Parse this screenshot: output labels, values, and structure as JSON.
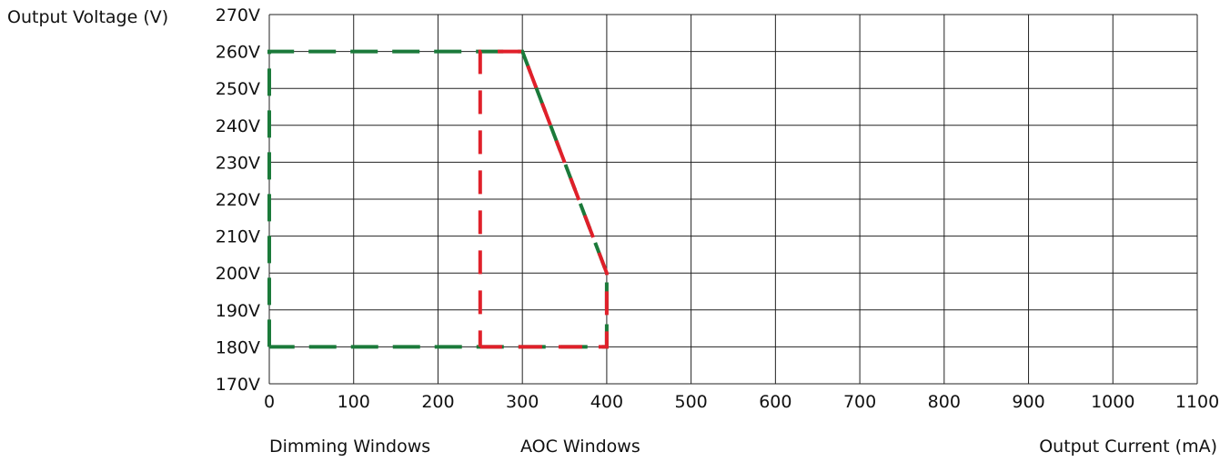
{
  "chart_data": {
    "type": "line",
    "ylabel": "Output Voltage (V)",
    "xlabel": "Output Current (mA)",
    "x_ticks": [
      "0",
      "100",
      "200",
      "300",
      "400",
      "500",
      "600",
      "700",
      "800",
      "900",
      "1000",
      "1100"
    ],
    "y_ticks": [
      "270V",
      "260V",
      "250V",
      "240V",
      "230V",
      "220V",
      "210V",
      "200V",
      "190V",
      "180V",
      "170V"
    ],
    "xlim": [
      0,
      1100
    ],
    "ylim": [
      170,
      270
    ],
    "grid": true,
    "series": [
      {
        "name": "Dimming Windows",
        "color": "#1b7a3a",
        "line_style": "dashed",
        "points": [
          [
            0,
            180
          ],
          [
            0,
            260
          ],
          [
            300,
            260
          ],
          [
            400,
            200
          ],
          [
            400,
            180
          ],
          [
            0,
            180
          ]
        ]
      },
      {
        "name": "AOC Windows",
        "color": "#e0202a",
        "line_style": "dashed",
        "points": [
          [
            250,
            180
          ],
          [
            250,
            260
          ],
          [
            300,
            260
          ],
          [
            400,
            200
          ],
          [
            400,
            180
          ],
          [
            250,
            180
          ]
        ]
      }
    ]
  }
}
